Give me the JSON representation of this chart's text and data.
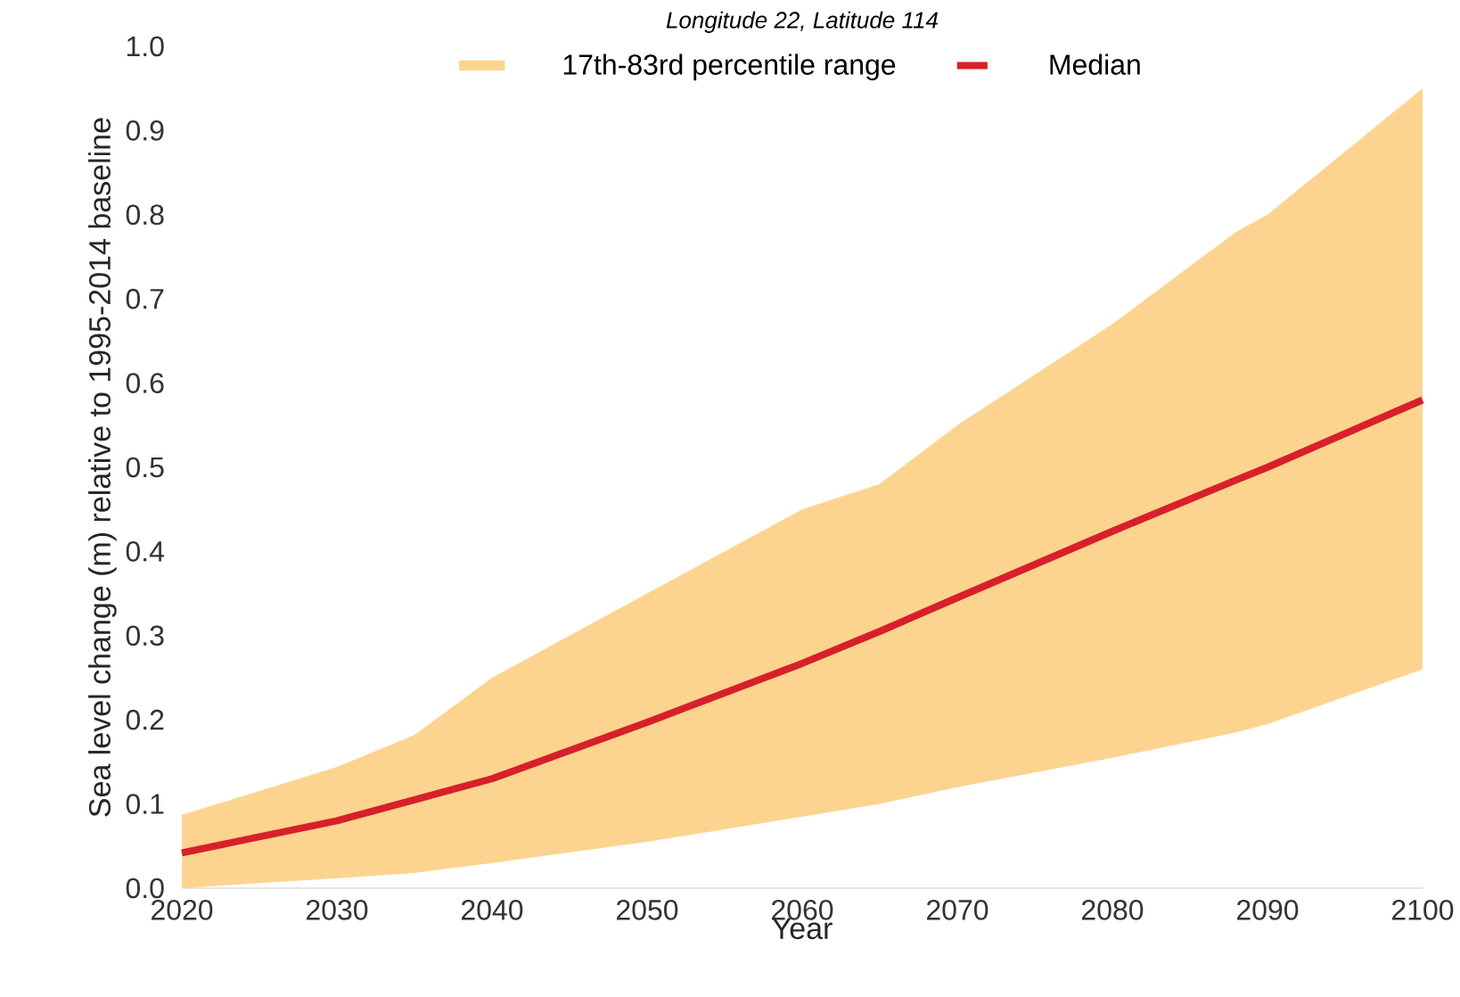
{
  "chart_data": {
    "type": "line",
    "title": "*Longitude 22, Latitude 114*",
    "xlabel": "Year",
    "ylabel": "Sea level change (m) relative to 1995-2014 baseline",
    "annotations": [
      "17th-83rd percentile range"
    ],
    "xlim": [
      2020,
      2100
    ],
    "xticks": [
      2020,
      2030,
      2040,
      2050,
      2060,
      2070,
      2080,
      2090,
      2100
    ],
    "ylim": [
      0,
      1
    ],
    "yticks": [
      {
        "value": 0,
        "label": "0.0"
      },
      {
        "value": 0.1,
        "label": "0.1"
      },
      {
        "value": 0.2,
        "label": "0.2"
      },
      {
        "value": 0.3,
        "label": "0.3"
      },
      {
        "value": 0.4,
        "label": "0.4"
      },
      {
        "value": 0.5,
        "label": "0.5"
      },
      {
        "value": 0.6,
        "label": "0.6"
      },
      {
        "value": 0.7,
        "label": "0.7"
      },
      {
        "value": 0.8,
        "label": "0.8"
      },
      {
        "value": 0.9,
        "label": "0.9"
      },
      {
        "value": 1,
        "label": "1.0"
      }
    ],
    "grid": false,
    "legend": "top",
    "series": [
      {
        "name": "Median",
        "color": "#d7202a",
        "x": [
          2020,
          2030,
          2035,
          2040,
          2050,
          2060,
          2065,
          2070,
          2080,
          2088,
          2090,
          2100
        ],
        "values": [
          0.042,
          0.08,
          0.105,
          0.13,
          0.197,
          0.267,
          0.305,
          0.345,
          0.424,
          0.485,
          0.5,
          0.58
        ],
        "lower": [
          0,
          0.012,
          0.018,
          0.03,
          0.055,
          0.085,
          0.1,
          0.12,
          0.155,
          0.185,
          0.195,
          0.26
        ],
        "upper": [
          0.087,
          0.144,
          0.182,
          0.25,
          0.35,
          0.45,
          0.48,
          0.55,
          0.67,
          0.78,
          0.8,
          0.95
        ]
      }
    ]
  }
}
